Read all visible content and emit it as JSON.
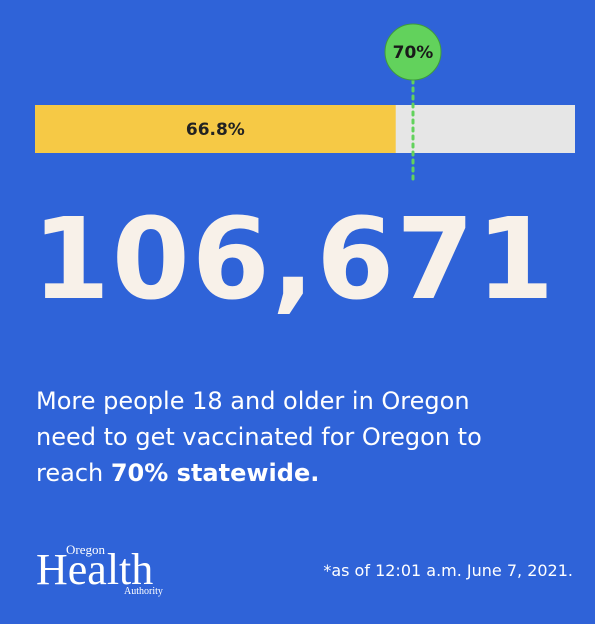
{
  "chart_data": {
    "type": "progress",
    "value": 66.8,
    "value_label": "66.8%",
    "target": 70,
    "target_label": "70%",
    "xlim": [
      0,
      100
    ],
    "color": "#f6c945",
    "track_color": "#e6e6e6",
    "target_color": "#62d25c"
  },
  "headline": "106,671",
  "body": "More people 18 and older in Oregon need to get vaccinated for Oregon to reach",
  "body_emphasis": "70% statewide.",
  "footnote": "*as of 12:01 a.m. June 7, 2021.",
  "logo": {
    "top": "Oregon",
    "main": "Health",
    "bottom": "Authority"
  }
}
